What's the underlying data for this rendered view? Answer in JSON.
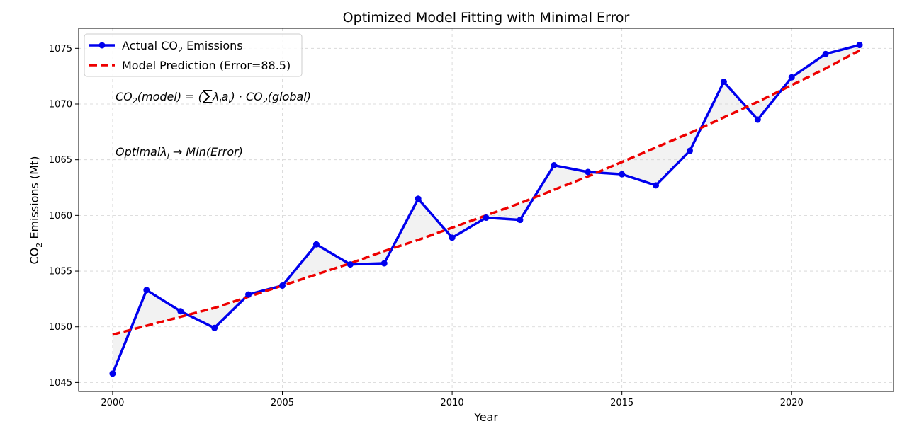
{
  "chart_data": {
    "type": "line",
    "title": "Optimized Model Fitting with Minimal Error",
    "xlabel": "Year",
    "ylabel_main": "CO",
    "ylabel_sub": "2",
    "ylabel_rest": " Emissions (Mt)",
    "xlim": [
      1999,
      2023
    ],
    "ylim": [
      1044.2,
      1076.8
    ],
    "xticks": [
      2000,
      2005,
      2010,
      2015,
      2020
    ],
    "yticks": [
      1045,
      1050,
      1055,
      1060,
      1065,
      1070,
      1075
    ],
    "grid": true,
    "legend_position": "top-left",
    "x": [
      2000,
      2001,
      2002,
      2003,
      2004,
      2005,
      2006,
      2007,
      2008,
      2009,
      2010,
      2011,
      2012,
      2013,
      2014,
      2015,
      2016,
      2017,
      2018,
      2019,
      2020,
      2021,
      2022
    ],
    "series": [
      {
        "name": "Actual CO2 Emissions",
        "legend_main": "Actual CO",
        "legend_sub": "2",
        "legend_rest": " Emissions",
        "color": "#0000ee",
        "style": "solid-markers",
        "values": [
          1045.8,
          1053.3,
          1051.4,
          1049.9,
          1052.9,
          1053.7,
          1057.4,
          1055.6,
          1055.7,
          1061.5,
          1058.0,
          1059.8,
          1059.6,
          1064.5,
          1063.9,
          1063.7,
          1062.7,
          1065.8,
          1072.0,
          1068.6,
          1072.4,
          1074.5,
          1075.3
        ]
      },
      {
        "name": "Model Prediction (Error=88.5)",
        "color": "#ee0000",
        "style": "dashed",
        "values": [
          1049.3,
          1050.1,
          1050.9,
          1051.7,
          1052.7,
          1053.7,
          1054.7,
          1055.7,
          1056.8,
          1057.8,
          1058.9,
          1060.0,
          1061.1,
          1062.3,
          1063.5,
          1064.8,
          1066.1,
          1067.4,
          1068.8,
          1070.2,
          1071.7,
          1073.2,
          1074.8
        ]
      }
    ],
    "annotations": [
      {
        "id": "formula",
        "text": "CO2(model) = (Σλiai) · CO2(global)"
      },
      {
        "id": "optimal",
        "text": "Optimalλi → Min(Error)"
      }
    ],
    "fill_between_color": "#d3d3d3"
  }
}
